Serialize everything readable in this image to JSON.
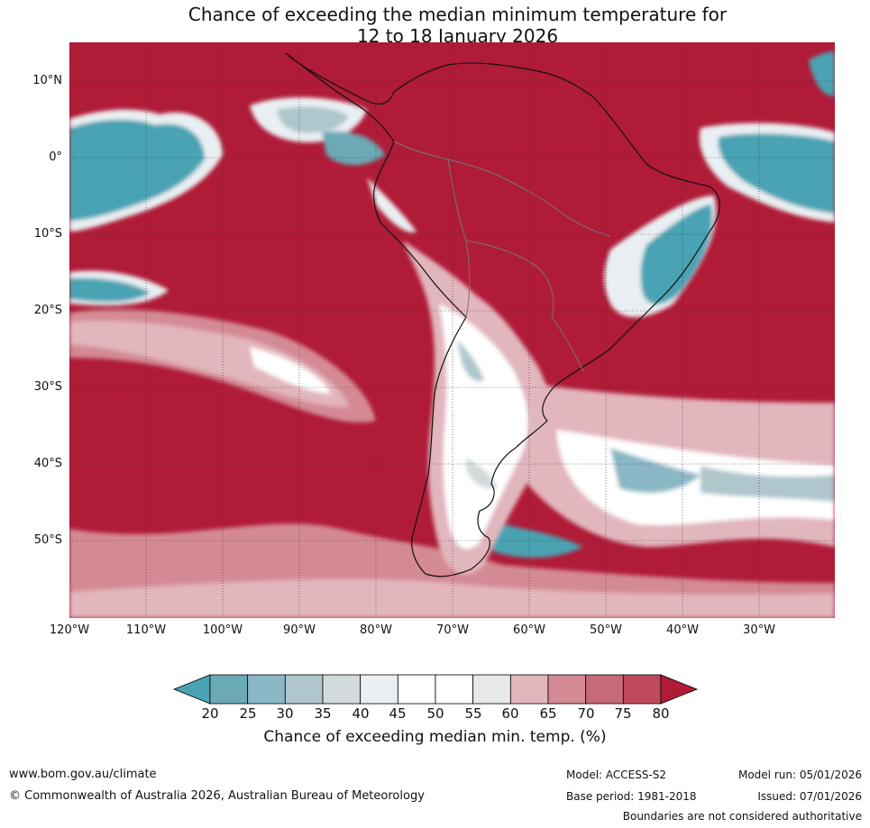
{
  "title": {
    "line1": "Chance of exceeding the median minimum temperature for",
    "line2": "12 to 18 January 2026"
  },
  "map": {
    "region": "South America",
    "lat_ticks": [
      "10°N",
      "0°",
      "10°S",
      "20°S",
      "30°S",
      "40°S",
      "50°S"
    ],
    "lon_ticks": [
      "120°W",
      "110°W",
      "100°W",
      "90°W",
      "80°W",
      "70°W",
      "60°W",
      "50°W",
      "40°W",
      "30°W"
    ]
  },
  "colorbar": {
    "title": "Chance of exceeding median min. temp. (%)",
    "labels": [
      "20",
      "25",
      "30",
      "35",
      "40",
      "45",
      "50",
      "55",
      "60",
      "65",
      "70",
      "75",
      "80"
    ],
    "colors": [
      "#4aa3b3",
      "#6aa9b5",
      "#8ab7c5",
      "#aec6cc",
      "#d3dadc",
      "#e9eff2",
      "#ffffff",
      "#ffffff",
      "#e9e9e9",
      "#e2b6bd",
      "#d48a94",
      "#c56a76",
      "#c0485c",
      "#b01b37"
    ]
  },
  "footer": {
    "url": "www.bom.gov.au/climate",
    "copyright": "© Commonwealth of Australia 2026, Australian Bureau of Meteorology",
    "model": "Model: ACCESS-S2",
    "base_period": "Base period: 1981-2018",
    "model_run": "Model run: 05/01/2026",
    "issued": "Issued: 07/01/2026",
    "disclaimer": "Boundaries are not considered authoritative"
  }
}
